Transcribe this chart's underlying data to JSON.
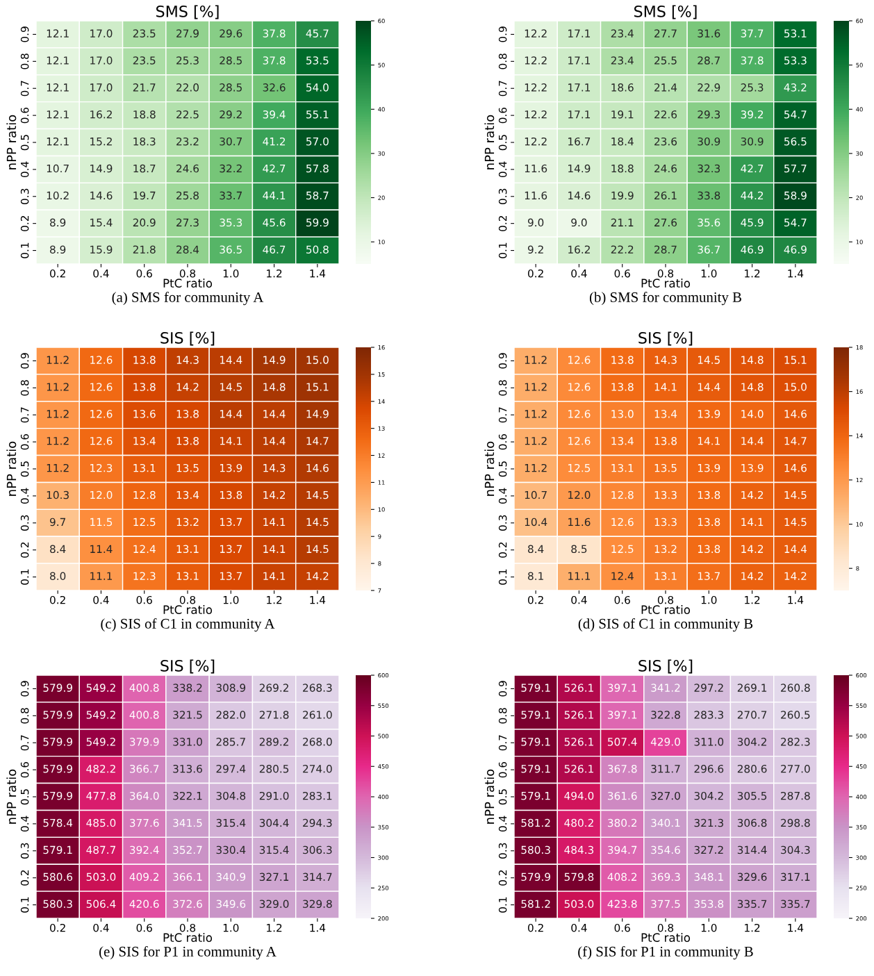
{
  "chart_data": [
    {
      "type": "heatmap",
      "title": "SMS [%]",
      "xlabel": "PtC ratio",
      "ylabel": "nPP ratio",
      "annotations": [
        "(a) SMS for community A"
      ],
      "data_labels": true,
      "categories": [
        "0.2",
        "0.4",
        "0.6",
        "0.8",
        "1.0",
        "1.2",
        "1.4"
      ],
      "y_categories": [
        "0.9",
        "0.8",
        "0.7",
        "0.6",
        "0.5",
        "0.4",
        "0.3",
        "0.2",
        "0.1"
      ],
      "colors": [
        "#f7fcf5",
        "#e5f5e0",
        "#c7e9c0",
        "#a1d99b",
        "#74c476",
        "#41ab5d",
        "#238b45",
        "#006d2c",
        "#00441b"
      ],
      "clim": [
        5,
        60
      ],
      "cticks": [
        10,
        20,
        30,
        40,
        50,
        60
      ],
      "cell_labels": [
        [
          "12.1",
          "17.0",
          "23.5",
          "27.9",
          "29.6",
          "37.8",
          "45.7"
        ],
        [
          "12.1",
          "17.0",
          "23.5",
          "25.3",
          "28.5",
          "37.8",
          "53.5"
        ],
        [
          "12.1",
          "17.0",
          "21.7",
          "22.0",
          "28.5",
          "32.6",
          "54.0"
        ],
        [
          "12.1",
          "16.2",
          "18.8",
          "22.5",
          "29.2",
          "39.4",
          "55.1"
        ],
        [
          "12.1",
          "15.2",
          "18.3",
          "23.2",
          "30.7",
          "41.2",
          "57.0"
        ],
        [
          "10.7",
          "14.9",
          "18.7",
          "24.6",
          "32.2",
          "42.7",
          "57.8"
        ],
        [
          "10.2",
          "14.6",
          "19.7",
          "25.8",
          "33.7",
          "44.1",
          "58.7"
        ],
        [
          "8.9",
          "15.4",
          "20.9",
          "27.3",
          "35.3",
          "45.6",
          "59.9"
        ],
        [
          "8.9",
          "15.9",
          "21.8",
          "28.4",
          "36.5",
          "46.7",
          "50.8"
        ]
      ],
      "cells": [
        [
          12.1,
          17.0,
          23.5,
          27.9,
          29.6,
          37.8,
          45.7
        ],
        [
          12.1,
          17.0,
          23.5,
          25.3,
          28.5,
          37.8,
          53.5
        ],
        [
          12.1,
          17.0,
          21.7,
          22.0,
          28.5,
          32.6,
          54.0
        ],
        [
          12.1,
          16.2,
          18.8,
          22.5,
          29.2,
          39.4,
          55.1
        ],
        [
          12.1,
          15.2,
          18.3,
          23.2,
          30.7,
          41.2,
          57.0
        ],
        [
          10.7,
          14.9,
          18.7,
          24.6,
          32.2,
          42.7,
          57.8
        ],
        [
          10.2,
          14.6,
          19.7,
          25.8,
          33.7,
          44.1,
          58.7
        ],
        [
          8.9,
          15.4,
          20.9,
          27.3,
          35.3,
          45.6,
          59.9
        ],
        [
          8.9,
          15.9,
          21.8,
          28.4,
          36.5,
          46.7,
          50.8
        ]
      ]
    },
    {
      "type": "heatmap",
      "title": "SMS [%]",
      "xlabel": "PtC ratio",
      "ylabel": "nPP ratio",
      "annotations": [
        "(b) SMS for community B"
      ],
      "data_labels": true,
      "categories": [
        "0.2",
        "0.4",
        "0.6",
        "0.8",
        "1.0",
        "1.2",
        "1.4"
      ],
      "y_categories": [
        "0.9",
        "0.8",
        "0.7",
        "0.6",
        "0.5",
        "0.4",
        "0.3",
        "0.2",
        "0.1"
      ],
      "colors": [
        "#f7fcf5",
        "#e5f5e0",
        "#c7e9c0",
        "#a1d99b",
        "#74c476",
        "#41ab5d",
        "#238b45",
        "#006d2c",
        "#00441b"
      ],
      "clim": [
        5,
        60
      ],
      "cticks": [
        10,
        20,
        30,
        40,
        50,
        60
      ],
      "cell_labels": [
        [
          "12.2",
          "17.1",
          "23.4",
          "27.7",
          "31.6",
          "37.7",
          "53.1"
        ],
        [
          "12.2",
          "17.1",
          "23.4",
          "25.5",
          "28.7",
          "37.8",
          "53.3"
        ],
        [
          "12.2",
          "17.1",
          "18.6",
          "21.4",
          "22.9",
          "25.3",
          "43.2"
        ],
        [
          "12.2",
          "17.1",
          "19.1",
          "22.6",
          "29.3",
          "39.2",
          "54.7"
        ],
        [
          "12.2",
          "16.7",
          "18.4",
          "23.6",
          "30.9",
          "30.9",
          "56.5"
        ],
        [
          "11.6",
          "14.9",
          "18.8",
          "24.6",
          "32.3",
          "42.7",
          "57.7"
        ],
        [
          "11.6",
          "14.6",
          "19.9",
          "26.1",
          "33.8",
          "44.2",
          "58.9"
        ],
        [
          "9.0",
          "9.0",
          "21.1",
          "27.6",
          "35.6",
          "45.9",
          "54.7"
        ],
        [
          "9.2",
          "16.2",
          "22.2",
          "28.7",
          "36.7",
          "46.9",
          "46.9"
        ]
      ],
      "cells": [
        [
          12.2,
          17.1,
          23.4,
          27.7,
          31.6,
          37.7,
          53.1
        ],
        [
          12.2,
          17.1,
          23.4,
          25.5,
          28.7,
          37.8,
          53.3
        ],
        [
          12.2,
          17.1,
          18.6,
          21.4,
          22.9,
          25.3,
          43.2
        ],
        [
          12.2,
          17.1,
          19.1,
          22.6,
          29.3,
          39.2,
          54.7
        ],
        [
          12.2,
          16.7,
          18.4,
          23.6,
          30.9,
          30.9,
          56.5
        ],
        [
          11.6,
          14.9,
          18.8,
          24.6,
          32.3,
          42.7,
          57.7
        ],
        [
          11.6,
          14.6,
          19.9,
          26.1,
          33.8,
          44.2,
          58.9
        ],
        [
          9.0,
          9.0,
          21.1,
          27.6,
          35.6,
          45.9,
          54.7
        ],
        [
          9.2,
          16.2,
          22.2,
          28.7,
          36.7,
          46.9,
          46.9
        ]
      ]
    },
    {
      "type": "heatmap",
      "title": "SIS [%]",
      "xlabel": "PtC ratio",
      "ylabel": "nPP ratio",
      "annotations": [
        "(c) SIS of C1 in community A"
      ],
      "data_labels": true,
      "categories": [
        "0.2",
        "0.4",
        "0.6",
        "0.8",
        "1.0",
        "1.2",
        "1.4"
      ],
      "y_categories": [
        "0.9",
        "0.8",
        "0.7",
        "0.6",
        "0.5",
        "0.4",
        "0.3",
        "0.2",
        "0.1"
      ],
      "colors": [
        "#fff5eb",
        "#fee6ce",
        "#fdd0a2",
        "#fdae6b",
        "#fd8d3c",
        "#f16913",
        "#d94801",
        "#a63603",
        "#7f2704"
      ],
      "clim": [
        7,
        16
      ],
      "cticks": [
        7,
        8,
        9,
        10,
        11,
        12,
        13,
        14,
        15,
        16
      ],
      "cell_labels": [
        [
          "11.2",
          "12.6",
          "13.8",
          "14.3",
          "14.4",
          "14.9",
          "15.0"
        ],
        [
          "11.2",
          "12.6",
          "13.8",
          "14.2",
          "14.5",
          "14.8",
          "15.1"
        ],
        [
          "11.2",
          "12.6",
          "13.6",
          "13.8",
          "14.4",
          "14.4",
          "14.9"
        ],
        [
          "11.2",
          "12.6",
          "13.4",
          "13.8",
          "14.1",
          "14.4",
          "14.7"
        ],
        [
          "11.2",
          "12.3",
          "13.1",
          "13.5",
          "13.9",
          "14.3",
          "14.6"
        ],
        [
          "10.3",
          "12.0",
          "12.8",
          "13.4",
          "13.8",
          "14.2",
          "14.5"
        ],
        [
          "9.7",
          "11.5",
          "12.5",
          "13.2",
          "13.7",
          "14.1",
          "14.5"
        ],
        [
          "8.4",
          "11.4",
          "12.4",
          "13.1",
          "13.7",
          "14.1",
          "14.5"
        ],
        [
          "8.0",
          "11.1",
          "12.3",
          "13.1",
          "13.7",
          "14.1",
          "14.2"
        ]
      ],
      "cells": [
        [
          11.2,
          12.6,
          13.8,
          14.3,
          14.4,
          14.9,
          15.0
        ],
        [
          11.2,
          12.6,
          13.8,
          14.2,
          14.5,
          14.8,
          15.1
        ],
        [
          11.2,
          12.6,
          13.6,
          13.8,
          14.4,
          14.4,
          14.9
        ],
        [
          11.2,
          12.6,
          13.4,
          13.8,
          14.1,
          14.4,
          14.7
        ],
        [
          11.2,
          12.3,
          13.1,
          13.5,
          13.9,
          14.3,
          14.6
        ],
        [
          10.3,
          12.0,
          12.8,
          13.4,
          13.8,
          14.2,
          14.5
        ],
        [
          9.7,
          11.5,
          12.5,
          13.2,
          13.7,
          14.1,
          14.5
        ],
        [
          8.4,
          11.4,
          12.4,
          13.1,
          13.7,
          14.1,
          14.5
        ],
        [
          8.0,
          11.1,
          12.3,
          13.1,
          13.7,
          14.1,
          14.2
        ]
      ]
    },
    {
      "type": "heatmap",
      "title": "SIS [%]",
      "xlabel": "PtC ratio",
      "ylabel": "nPP ratio",
      "annotations": [
        "(d) SIS of C1 in community B"
      ],
      "data_labels": true,
      "categories": [
        "0.2",
        "0.4",
        "0.6",
        "0.8",
        "1.0",
        "1.2",
        "1.4"
      ],
      "y_categories": [
        "0.9",
        "0.8",
        "0.7",
        "0.6",
        "0.5",
        "0.4",
        "0.3",
        "0.2",
        "0.1"
      ],
      "colors": [
        "#fff5eb",
        "#fee6ce",
        "#fdd0a2",
        "#fdae6b",
        "#fd8d3c",
        "#f16913",
        "#d94801",
        "#a63603",
        "#7f2704"
      ],
      "clim": [
        7,
        18
      ],
      "cticks": [
        8,
        10,
        12,
        14,
        16,
        18
      ],
      "cell_labels": [
        [
          "11.2",
          "12.6",
          "13.8",
          "14.3",
          "14.5",
          "14.8",
          "15.1"
        ],
        [
          "11.2",
          "12.6",
          "13.8",
          "14.1",
          "14.4",
          "14.8",
          "15.0"
        ],
        [
          "11.2",
          "12.6",
          "13.0",
          "13.4",
          "13.9",
          "14.0",
          "14.6"
        ],
        [
          "11.2",
          "12.6",
          "13.4",
          "13.8",
          "14.1",
          "14.4",
          "14.7"
        ],
        [
          "11.2",
          "12.5",
          "13.1",
          "13.5",
          "13.9",
          "13.9",
          "14.6"
        ],
        [
          "10.7",
          "12.0",
          "12.8",
          "13.3",
          "13.8",
          "14.2",
          "14.5"
        ],
        [
          "10.4",
          "11.6",
          "12.6",
          "13.3",
          "13.8",
          "14.1",
          "14.5"
        ],
        [
          "8.4",
          "8.5",
          "12.5",
          "13.2",
          "13.8",
          "14.2",
          "14.4"
        ],
        [
          "8.1",
          "11.1",
          "12.4",
          "13.1",
          "13.7",
          "14.2",
          "14.2"
        ]
      ],
      "cells": [
        [
          11.2,
          12.6,
          13.8,
          14.3,
          14.5,
          14.8,
          15.1
        ],
        [
          11.2,
          12.6,
          13.8,
          14.1,
          14.4,
          14.8,
          15.0
        ],
        [
          11.2,
          12.6,
          13.0,
          13.4,
          13.9,
          14.0,
          14.6
        ],
        [
          11.2,
          12.6,
          13.4,
          13.8,
          14.1,
          14.4,
          14.7
        ],
        [
          11.2,
          12.5,
          13.1,
          13.5,
          13.9,
          13.9,
          14.6
        ],
        [
          10.7,
          12.0,
          12.8,
          13.3,
          13.8,
          14.2,
          14.5
        ],
        [
          10.4,
          11.6,
          12.6,
          13.3,
          13.8,
          14.1,
          14.5
        ],
        [
          8.4,
          8.5,
          12.5,
          13.2,
          13.8,
          14.2,
          14.4
        ],
        [
          8.1,
          11.1,
          12.4,
          13.1,
          13.7,
          14.2,
          14.2
        ]
      ]
    },
    {
      "type": "heatmap",
      "title": "SIS [%]",
      "xlabel": "PtC ratio",
      "ylabel": "nPP ratio",
      "annotations": [
        "(e) SIS for P1 in community A"
      ],
      "data_labels": true,
      "categories": [
        "0.2",
        "0.4",
        "0.6",
        "0.8",
        "1.0",
        "1.2",
        "1.4"
      ],
      "y_categories": [
        "0.9",
        "0.8",
        "0.7",
        "0.6",
        "0.5",
        "0.4",
        "0.3",
        "0.2",
        "0.1"
      ],
      "colors": [
        "#f7f4f9",
        "#e7e1ef",
        "#d4b9da",
        "#c994c7",
        "#df65b0",
        "#e7298a",
        "#ce1256",
        "#980043",
        "#67001f"
      ],
      "clim": [
        200,
        600
      ],
      "cticks": [
        200,
        250,
        300,
        350,
        400,
        450,
        500,
        550,
        600
      ],
      "cell_labels": [
        [
          "579.9",
          "549.2",
          "400.8",
          "338.2",
          "308.9",
          "269.2",
          "268.3"
        ],
        [
          "579.9",
          "549.2",
          "400.8",
          "321.5",
          "282.0",
          "271.8",
          "261.0"
        ],
        [
          "579.9",
          "549.2",
          "379.9",
          "331.0",
          "285.7",
          "289.2",
          "268.0"
        ],
        [
          "579.9",
          "482.2",
          "366.7",
          "313.6",
          "297.4",
          "280.5",
          "274.0"
        ],
        [
          "579.9",
          "477.8",
          "364.0",
          "322.1",
          "304.8",
          "291.0",
          "283.1"
        ],
        [
          "578.4",
          "485.0",
          "377.6",
          "341.5",
          "315.4",
          "304.4",
          "294.3"
        ],
        [
          "579.1",
          "487.7",
          "392.4",
          "352.7",
          "330.4",
          "315.4",
          "306.3"
        ],
        [
          "580.6",
          "503.0",
          "409.2",
          "366.1",
          "340.9",
          "327.1",
          "314.7"
        ],
        [
          "580.3",
          "506.4",
          "420.6",
          "372.6",
          "349.6",
          "329.0",
          "329.8"
        ]
      ],
      "cells": [
        [
          579.9,
          549.2,
          400.8,
          338.2,
          308.9,
          269.2,
          268.3
        ],
        [
          579.9,
          549.2,
          400.8,
          321.5,
          282.0,
          271.8,
          261.0
        ],
        [
          579.9,
          549.2,
          379.9,
          331.0,
          285.7,
          289.2,
          268.0
        ],
        [
          579.9,
          482.2,
          366.7,
          313.6,
          297.4,
          280.5,
          274.0
        ],
        [
          579.9,
          477.8,
          364.0,
          322.1,
          304.8,
          291.0,
          283.1
        ],
        [
          578.4,
          485.0,
          377.6,
          341.5,
          315.4,
          304.4,
          294.3
        ],
        [
          579.1,
          487.7,
          392.4,
          352.7,
          330.4,
          315.4,
          306.3
        ],
        [
          580.6,
          503.0,
          409.2,
          366.1,
          340.9,
          327.1,
          314.7
        ],
        [
          580.3,
          506.4,
          420.6,
          372.6,
          349.6,
          329.0,
          329.8
        ]
      ]
    },
    {
      "type": "heatmap",
      "title": "SIS [%]",
      "xlabel": "PtC ratio",
      "ylabel": "nPP ratio",
      "annotations": [
        "(f) SIS for P1 in community B"
      ],
      "data_labels": true,
      "categories": [
        "0.2",
        "0.4",
        "0.6",
        "0.8",
        "1.0",
        "1.2",
        "1.4"
      ],
      "y_categories": [
        "0.9",
        "0.8",
        "0.7",
        "0.6",
        "0.5",
        "0.4",
        "0.3",
        "0.2",
        "0.1"
      ],
      "colors": [
        "#f7f4f9",
        "#e7e1ef",
        "#d4b9da",
        "#c994c7",
        "#df65b0",
        "#e7298a",
        "#ce1256",
        "#980043",
        "#67001f"
      ],
      "clim": [
        200,
        600
      ],
      "cticks": [
        200,
        250,
        300,
        350,
        400,
        450,
        500,
        550,
        600
      ],
      "cell_labels": [
        [
          "579.1",
          "526.1",
          "397.1",
          "341.2",
          "297.2",
          "269.1",
          "260.8"
        ],
        [
          "579.1",
          "526.1",
          "397.1",
          "322.8",
          "283.3",
          "270.7",
          "260.5"
        ],
        [
          "579.1",
          "526.1",
          "507.4",
          "429.0",
          "311.0",
          "304.2",
          "282.3"
        ],
        [
          "579.1",
          "526.1",
          "367.8",
          "311.7",
          "296.6",
          "280.6",
          "277.0"
        ],
        [
          "579.1",
          "494.0",
          "361.6",
          "327.0",
          "304.2",
          "305.5",
          "287.8"
        ],
        [
          "581.2",
          "480.2",
          "380.2",
          "340.1",
          "321.3",
          "306.8",
          "298.8"
        ],
        [
          "580.3",
          "484.3",
          "394.7",
          "354.6",
          "327.2",
          "314.4",
          "304.3"
        ],
        [
          "579.9",
          "579.8",
          "408.2",
          "369.3",
          "348.1",
          "329.6",
          "317.1"
        ],
        [
          "581.2",
          "503.0",
          "423.8",
          "377.5",
          "353.8",
          "335.7",
          "335.7"
        ]
      ],
      "cells": [
        [
          579.1,
          526.1,
          397.1,
          341.2,
          297.2,
          269.1,
          260.8
        ],
        [
          579.1,
          526.1,
          397.1,
          322.8,
          283.3,
          270.7,
          260.5
        ],
        [
          579.1,
          526.1,
          507.4,
          429.0,
          311.0,
          304.2,
          282.3
        ],
        [
          579.1,
          526.1,
          367.8,
          311.7,
          296.6,
          280.6,
          277.0
        ],
        [
          579.1,
          494.0,
          361.6,
          327.0,
          304.2,
          305.5,
          287.8
        ],
        [
          581.2,
          480.2,
          380.2,
          340.1,
          321.3,
          306.8,
          298.8
        ],
        [
          580.3,
          484.3,
          394.7,
          354.6,
          327.2,
          314.4,
          304.3
        ],
        [
          579.9,
          579.8,
          408.2,
          369.3,
          348.1,
          329.6,
          317.1
        ],
        [
          581.2,
          503.0,
          423.8,
          377.5,
          353.8,
          335.7,
          335.7
        ]
      ]
    }
  ]
}
